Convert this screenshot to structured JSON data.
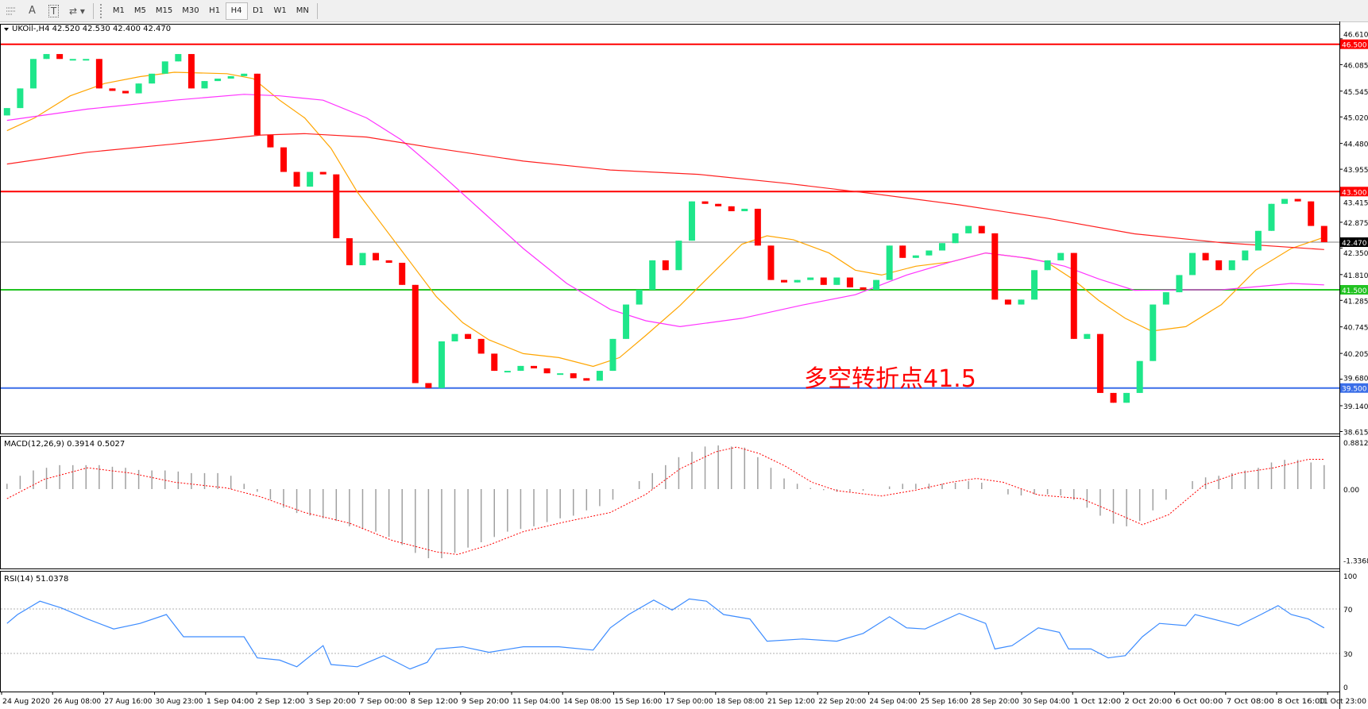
{
  "toolbar": {
    "tools": [
      {
        "icon": "crosshair-grid-icon",
        "label": ""
      },
      {
        "icon": "text-icon",
        "label": "A"
      },
      {
        "icon": "text-label-icon",
        "label": "T"
      },
      {
        "icon": "arrows-icon",
        "label": ""
      }
    ],
    "timeframes": [
      "M1",
      "M5",
      "M15",
      "M30",
      "H1",
      "H4",
      "D1",
      "W1",
      "MN"
    ],
    "active_timeframe": "H4"
  },
  "chart_data": [
    {
      "type": "candlestick",
      "title": "UKOil-,H4  42.520 42.530 42.400 42.470",
      "symbol": "UKOil-",
      "timeframe": "H4",
      "ohlc_current": {
        "open": 42.52,
        "high": 42.53,
        "low": 42.4,
        "close": 42.47
      },
      "colors": {
        "up": "#1ee68a",
        "down": "#ff0000",
        "ma_fast": "#ffa500",
        "ma_mid": "#ff33ff",
        "ma_slow": "#ff2020"
      },
      "ylim": [
        38.615,
        46.7
      ],
      "y_ticks": [
        "46.610",
        "46.085",
        "45.545",
        "45.020",
        "44.480",
        "43.955",
        "43.415",
        "42.875",
        "42.350",
        "41.810",
        "41.285",
        "40.745",
        "40.205",
        "39.680",
        "39.140",
        "38.615"
      ],
      "closes": [
        45.2,
        45.6,
        46.2,
        46.3,
        46.2,
        46.2,
        46.2,
        45.6,
        45.55,
        45.5,
        45.7,
        45.9,
        46.15,
        46.3,
        45.6,
        45.75,
        45.8,
        45.85,
        45.9,
        44.65,
        44.4,
        43.9,
        43.6,
        43.9,
        43.85,
        42.55,
        42.0,
        42.25,
        42.1,
        42.05,
        41.6,
        39.6,
        39.5,
        40.45,
        40.6,
        40.5,
        40.2,
        39.85,
        39.85,
        39.95,
        39.9,
        39.8,
        39.8,
        39.7,
        39.65,
        39.85,
        40.5,
        41.2,
        41.5,
        42.1,
        41.9,
        42.5,
        43.3,
        43.25,
        43.2,
        43.1,
        43.15,
        42.4,
        41.7,
        41.65,
        41.7,
        41.75,
        41.6,
        41.75,
        41.55,
        41.5,
        41.7,
        42.4,
        42.15,
        42.2,
        42.3,
        42.45,
        42.65,
        42.8,
        42.65,
        41.3,
        41.2,
        41.3,
        41.9,
        42.1,
        42.25,
        40.5,
        40.6,
        39.4,
        39.2,
        39.4,
        40.05,
        41.2,
        41.45,
        41.8,
        42.25,
        42.1,
        41.9,
        42.1,
        42.3,
        42.7,
        43.25,
        43.35,
        43.3,
        42.8,
        42.47
      ],
      "first_open": 45.05,
      "moving_averages": {
        "fast": [
          [
            0,
            44.74
          ],
          [
            2.1,
            45.0
          ],
          [
            4.8,
            45.45
          ],
          [
            7.4,
            45.7
          ],
          [
            10.1,
            45.84
          ],
          [
            12.7,
            45.93
          ],
          [
            16.7,
            45.9
          ],
          [
            18.7,
            45.8
          ],
          [
            20.7,
            45.36
          ],
          [
            22.6,
            45.0
          ],
          [
            24.6,
            44.38
          ],
          [
            26.6,
            43.49
          ],
          [
            28.6,
            42.78
          ],
          [
            30.6,
            42.07
          ],
          [
            32.6,
            41.36
          ],
          [
            34.6,
            40.83
          ],
          [
            36.6,
            40.48
          ],
          [
            39.2,
            40.2
          ],
          [
            41.9,
            40.12
          ],
          [
            44.5,
            39.94
          ],
          [
            46.5,
            40.12
          ],
          [
            48.5,
            40.57
          ],
          [
            51.1,
            41.18
          ],
          [
            53.8,
            41.9
          ],
          [
            55.8,
            42.43
          ],
          [
            57.7,
            42.6
          ],
          [
            59.7,
            42.52
          ],
          [
            62.4,
            42.25
          ],
          [
            64.4,
            41.9
          ],
          [
            66.4,
            41.8
          ],
          [
            69,
            41.98
          ],
          [
            71.7,
            42.07
          ],
          [
            74.3,
            42.25
          ],
          [
            77,
            42.16
          ],
          [
            78.9,
            42.07
          ],
          [
            80.9,
            41.72
          ],
          [
            82.9,
            41.28
          ],
          [
            84.9,
            40.92
          ],
          [
            86.9,
            40.66
          ],
          [
            89.5,
            40.75
          ],
          [
            92.2,
            41.2
          ],
          [
            94.8,
            41.9
          ],
          [
            97.5,
            42.34
          ],
          [
            100,
            42.57
          ]
        ],
        "mid": [
          [
            0,
            44.95
          ],
          [
            6.1,
            45.18
          ],
          [
            12.7,
            45.36
          ],
          [
            18,
            45.48
          ],
          [
            20.7,
            45.45
          ],
          [
            24,
            45.36
          ],
          [
            27.3,
            45.0
          ],
          [
            29.9,
            44.56
          ],
          [
            32.6,
            43.94
          ],
          [
            35.9,
            43.14
          ],
          [
            39.2,
            42.34
          ],
          [
            42.5,
            41.63
          ],
          [
            45.8,
            41.1
          ],
          [
            48.5,
            40.87
          ],
          [
            51.1,
            40.75
          ],
          [
            55.8,
            40.92
          ],
          [
            60.4,
            41.19
          ],
          [
            64.4,
            41.4
          ],
          [
            68.3,
            41.8
          ],
          [
            71.7,
            42.07
          ],
          [
            74.3,
            42.25
          ],
          [
            77.6,
            42.14
          ],
          [
            80.3,
            41.98
          ],
          [
            82.9,
            41.72
          ],
          [
            85.6,
            41.49
          ],
          [
            89.5,
            41.5
          ],
          [
            92.2,
            41.5
          ],
          [
            95.5,
            41.58
          ],
          [
            97.5,
            41.63
          ],
          [
            100,
            41.6
          ]
        ],
        "slow": [
          [
            0,
            44.06
          ],
          [
            6.1,
            44.3
          ],
          [
            12.7,
            44.47
          ],
          [
            19.3,
            44.65
          ],
          [
            22.6,
            44.68
          ],
          [
            27.3,
            44.61
          ],
          [
            32.6,
            44.38
          ],
          [
            39.2,
            44.12
          ],
          [
            45.8,
            43.94
          ],
          [
            52.5,
            43.85
          ],
          [
            59.1,
            43.67
          ],
          [
            65.7,
            43.46
          ],
          [
            72.3,
            43.23
          ],
          [
            78.9,
            42.96
          ],
          [
            85.6,
            42.64
          ],
          [
            92.2,
            42.46
          ],
          [
            100,
            42.32
          ]
        ]
      },
      "levels": [
        {
          "price": 46.5,
          "label": "46.500",
          "color": "#ff0000"
        },
        {
          "price": 43.5,
          "label": "43.500",
          "color": "#ff0000"
        },
        {
          "price": 41.5,
          "label": "41.500",
          "color": "#22c322"
        },
        {
          "price": 39.5,
          "label": "39.500",
          "color": "#3a6ee8"
        }
      ],
      "current_price": {
        "price": 42.47,
        "label": "42.470",
        "color": "#808080"
      },
      "annotation": {
        "text": "多空转折点41.5",
        "color": "#ff0000"
      }
    },
    {
      "type": "bar",
      "title": "MACD(12,26,9) 0.3914 0.5027",
      "ylim": [
        -1.3368,
        0.8812
      ],
      "y_ticks": [
        "0.8812",
        "0.00",
        "-1.3368"
      ],
      "histogram": [
        0.1,
        0.25,
        0.35,
        0.4,
        0.45,
        0.45,
        0.45,
        0.45,
        0.42,
        0.4,
        0.36,
        0.35,
        0.35,
        0.33,
        0.3,
        0.3,
        0.3,
        0.25,
        0.1,
        -0.05,
        -0.2,
        -0.35,
        -0.45,
        -0.5,
        -0.55,
        -0.6,
        -0.7,
        -0.75,
        -0.8,
        -0.9,
        -1.05,
        -1.2,
        -1.3,
        -1.3,
        -1.2,
        -1.1,
        -1.0,
        -0.9,
        -0.8,
        -0.75,
        -0.7,
        -0.62,
        -0.55,
        -0.5,
        -0.4,
        -0.32,
        -0.2,
        0.0,
        0.15,
        0.3,
        0.45,
        0.6,
        0.7,
        0.8,
        0.82,
        0.8,
        0.78,
        0.6,
        0.4,
        0.2,
        0.1,
        0.02,
        -0.02,
        -0.05,
        -0.05,
        -0.03,
        0.0,
        0.05,
        0.1,
        0.1,
        0.1,
        0.1,
        0.12,
        0.15,
        0.12,
        0.0,
        -0.1,
        -0.12,
        -0.1,
        -0.1,
        -0.12,
        -0.2,
        -0.35,
        -0.5,
        -0.65,
        -0.7,
        -0.6,
        -0.4,
        -0.2,
        0.0,
        0.15,
        0.22,
        0.25,
        0.3,
        0.35,
        0.4,
        0.5,
        0.55,
        0.55,
        0.5,
        0.45
      ],
      "signal": [
        [
          0,
          -0.18
        ],
        [
          2.8,
          0.18
        ],
        [
          6.1,
          0.4
        ],
        [
          9.4,
          0.3
        ],
        [
          12.7,
          0.13
        ],
        [
          16.7,
          0.02
        ],
        [
          19.3,
          -0.15
        ],
        [
          22.6,
          -0.44
        ],
        [
          26,
          -0.64
        ],
        [
          29.3,
          -0.97
        ],
        [
          32.6,
          -1.18
        ],
        [
          34.2,
          -1.23
        ],
        [
          36.6,
          -1.05
        ],
        [
          39.2,
          -0.8
        ],
        [
          42.5,
          -0.61
        ],
        [
          45.8,
          -0.44
        ],
        [
          48.5,
          -0.1
        ],
        [
          51.1,
          0.38
        ],
        [
          53.8,
          0.7
        ],
        [
          55.4,
          0.79
        ],
        [
          57.1,
          0.67
        ],
        [
          59.1,
          0.43
        ],
        [
          61.1,
          0.13
        ],
        [
          63,
          -0.03
        ],
        [
          66.4,
          -0.13
        ],
        [
          69,
          -0.02
        ],
        [
          71.7,
          0.13
        ],
        [
          73.6,
          0.2
        ],
        [
          75.6,
          0.13
        ],
        [
          78.3,
          -0.11
        ],
        [
          81.6,
          -0.18
        ],
        [
          83.6,
          -0.39
        ],
        [
          86.2,
          -0.67
        ],
        [
          88.2,
          -0.48
        ],
        [
          90.9,
          0.08
        ],
        [
          93.5,
          0.3
        ],
        [
          96.2,
          0.4
        ],
        [
          98.8,
          0.56
        ],
        [
          100,
          0.56
        ]
      ],
      "colors": {
        "histogram": "#a0a0a0",
        "signal": "#ff0000"
      }
    },
    {
      "type": "line",
      "title": "RSI(14) 51.0378",
      "ylim": [
        0,
        100
      ],
      "y_ticks": [
        "100",
        "70",
        "30",
        "0"
      ],
      "levels": [
        70,
        30
      ],
      "values": [
        [
          0,
          57
        ],
        [
          0.8,
          65
        ],
        [
          2.5,
          77
        ],
        [
          4.1,
          71
        ],
        [
          6.1,
          61
        ],
        [
          8.1,
          52
        ],
        [
          10.1,
          57
        ],
        [
          12.1,
          65
        ],
        [
          13.4,
          45
        ],
        [
          15.4,
          45
        ],
        [
          18,
          45
        ],
        [
          19,
          26
        ],
        [
          20.7,
          24
        ],
        [
          22,
          18
        ],
        [
          24,
          37
        ],
        [
          24.6,
          20
        ],
        [
          26.6,
          18
        ],
        [
          28.6,
          28
        ],
        [
          30.6,
          16
        ],
        [
          31.9,
          22
        ],
        [
          32.6,
          34
        ],
        [
          34.6,
          36
        ],
        [
          36.6,
          31
        ],
        [
          39.2,
          36
        ],
        [
          41.9,
          36
        ],
        [
          44.5,
          33
        ],
        [
          45.8,
          53
        ],
        [
          47.2,
          65
        ],
        [
          49.1,
          78
        ],
        [
          50.5,
          69
        ],
        [
          51.8,
          79
        ],
        [
          53.1,
          77
        ],
        [
          54.4,
          65
        ],
        [
          56.4,
          61
        ],
        [
          57.7,
          41
        ],
        [
          60.4,
          43
        ],
        [
          63,
          41
        ],
        [
          65,
          48
        ],
        [
          67,
          63
        ],
        [
          68.3,
          53
        ],
        [
          69.7,
          52
        ],
        [
          72.3,
          66
        ],
        [
          74.3,
          57
        ],
        [
          75,
          34
        ],
        [
          76.3,
          37
        ],
        [
          78.3,
          53
        ],
        [
          79.9,
          49
        ],
        [
          80.6,
          34
        ],
        [
          82.3,
          34
        ],
        [
          83.6,
          26
        ],
        [
          84.9,
          28
        ],
        [
          86.2,
          45
        ],
        [
          87.5,
          57
        ],
        [
          89.5,
          55
        ],
        [
          90.2,
          65
        ],
        [
          92.2,
          59
        ],
        [
          93.5,
          55
        ],
        [
          95.2,
          65
        ],
        [
          96.5,
          73
        ],
        [
          97.5,
          65
        ],
        [
          98.8,
          61
        ],
        [
          100,
          53
        ]
      ],
      "color": "#3d8cff"
    }
  ],
  "time_axis": [
    "24 Aug 2020",
    "26 Aug 08:00",
    "27 Aug 16:00",
    "30 Aug 23:00",
    "1 Sep 04:00",
    "2 Sep 12:00",
    "3 Sep 20:00",
    "7 Sep 00:00",
    "8 Sep 12:00",
    "9 Sep 20:00",
    "11 Sep 04:00",
    "14 Sep 08:00",
    "15 Sep 16:00",
    "17 Sep 00:00",
    "18 Sep 08:00",
    "21 Sep 12:00",
    "22 Sep 20:00",
    "24 Sep 04:00",
    "25 Sep 16:00",
    "28 Sep 20:00",
    "30 Sep 04:00",
    "1 Oct 12:00",
    "2 Oct 20:00",
    "6 Oct 00:00",
    "7 Oct 08:00",
    "8 Oct 16:00",
    "11 Oct 23:00"
  ]
}
